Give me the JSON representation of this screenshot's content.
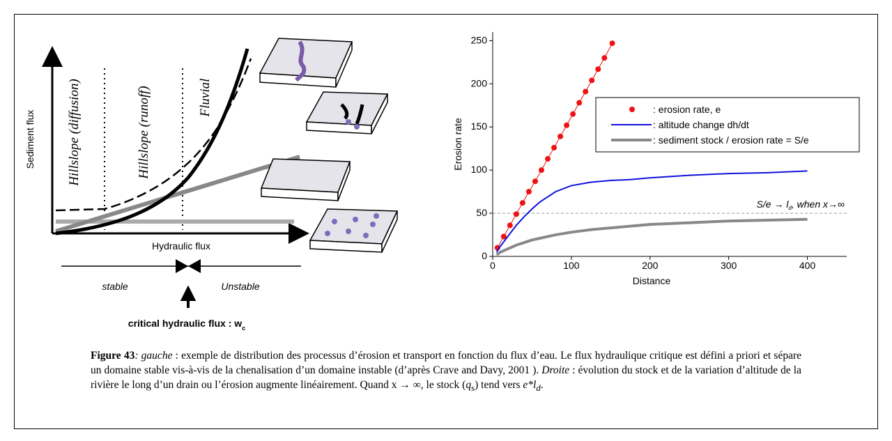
{
  "diagram": {
    "y_axis_label": "Sediment flux",
    "x_axis_label": "Hydraulic flux",
    "domains": [
      "Hillslope (diffusion)",
      "Hillslope (runoff)",
      "Fluvial"
    ],
    "stable": "stable",
    "unstable": "Unstable",
    "critical": [
      "critical hydraulic flux : w",
      "c"
    ]
  },
  "chart_data": {
    "type": "line",
    "ylabel": "Erosion rate",
    "xlabel": "Distance",
    "xlim": [
      0,
      450
    ],
    "xticks": [
      0,
      100,
      200,
      300,
      400
    ],
    "ylim": [
      0,
      260
    ],
    "yticks": [
      0,
      50,
      100,
      150,
      200,
      250
    ],
    "legend": "upper right",
    "reference": {
      "value": 50,
      "annotation": [
        "S/e → l",
        "d",
        ", when x→∞"
      ]
    },
    "series": [
      {
        "name": ": erosion rate, e",
        "color": "#ee1111",
        "style": "markers+line",
        "x": [
          6,
          14,
          22,
          30,
          38,
          46,
          54,
          62,
          70,
          78,
          86,
          94,
          102,
          110,
          118,
          126,
          134,
          142,
          152
        ],
        "values": [
          10,
          23,
          36,
          49,
          62,
          75,
          87,
          100,
          113,
          126,
          139,
          152,
          165,
          178,
          191,
          204,
          217,
          230,
          247
        ]
      },
      {
        "name": ": altitude change dh/dt",
        "color": "#1010dd",
        "style": "line",
        "x": [
          5,
          10,
          20,
          30,
          40,
          50,
          60,
          80,
          100,
          125,
          150,
          175,
          200,
          250,
          300,
          350,
          400
        ],
        "values": [
          5,
          12,
          24,
          36,
          46,
          55,
          63,
          75,
          82,
          86,
          88,
          89,
          91,
          94,
          96,
          97,
          99
        ]
      },
      {
        "name": ": sediment stock / erosion rate = S/e",
        "color": "#888888",
        "style": "thick-line",
        "x": [
          5,
          10,
          20,
          30,
          40,
          50,
          60,
          80,
          100,
          125,
          150,
          175,
          200,
          250,
          300,
          350,
          400
        ],
        "values": [
          2,
          5,
          9,
          13,
          16,
          19,
          21,
          25,
          28,
          31,
          33,
          35,
          37,
          39,
          41,
          42,
          43
        ]
      }
    ]
  },
  "caption": [
    "Figure 43",
    ": gauche",
    " : exemple de distribution des processus d’érosion et transport en fonction du flux d’eau. Le flux hydraulique critique est défini a priori et sépare un domaine stable vis-à-vis de la chenalisation d’un domaine instable (d’après Crave and Davy, 2001 ). ",
    "Droite",
    " : évolution du stock et de la variation d’altitude de la rivière le long d’un drain ou l’érosion augmente linéairement. Quand x → ∞, le stock (",
    "q",
    "s",
    ") tend vers ",
    "e*l",
    "d",
    "."
  ]
}
